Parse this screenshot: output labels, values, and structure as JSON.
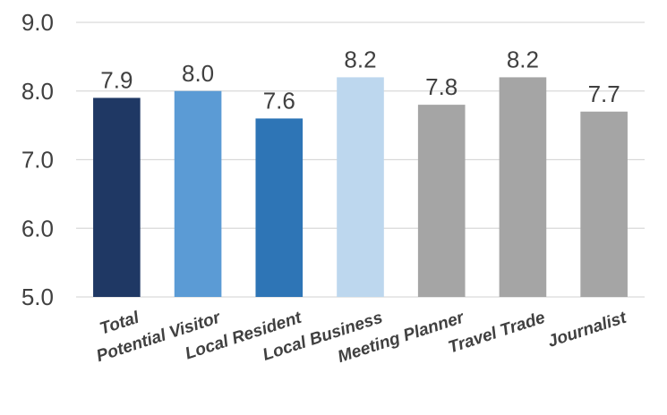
{
  "chart_data": {
    "type": "bar",
    "title": "",
    "xlabel": "",
    "ylabel": "",
    "ylim": [
      5.0,
      9.0
    ],
    "yticks": [
      5.0,
      6.0,
      7.0,
      8.0,
      9.0
    ],
    "grid": true,
    "categories": [
      "Total",
      "Potential Visitor",
      "Local Resident",
      "Local Business",
      "Meeting Planner",
      "Travel Trade",
      "Journalist"
    ],
    "values": [
      7.9,
      8.0,
      7.6,
      8.2,
      7.8,
      8.2,
      7.7
    ],
    "data_labels": [
      "7.9",
      "8.0",
      "7.6",
      "8.2",
      "7.8",
      "8.2",
      "7.7"
    ],
    "colors": [
      "#1f3864",
      "#5b9bd5",
      "#2e75b6",
      "#bdd7ee",
      "#a5a5a5",
      "#a5a5a5",
      "#a5a5a5"
    ]
  }
}
